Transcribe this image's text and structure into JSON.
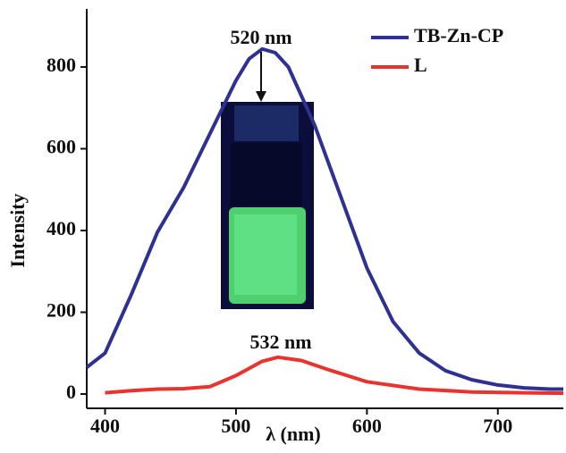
{
  "chart_data": {
    "type": "line",
    "xlabel": "λ (nm)",
    "ylabel": "Intensity",
    "xlim": [
      386,
      750
    ],
    "ylim": [
      -35,
      942
    ],
    "xticks": [
      400,
      500,
      600,
      700
    ],
    "yticks": [
      0,
      200,
      400,
      600,
      800
    ],
    "legend": "upper right",
    "annotations": [
      "520 nm",
      "532 nm"
    ],
    "series": [
      {
        "name": "TB-Zn-CP",
        "color": "#2e3192",
        "x": [
          386,
          400,
          420,
          440,
          460,
          480,
          500,
          510,
          520,
          530,
          540,
          560,
          580,
          600,
          620,
          640,
          660,
          680,
          700,
          720,
          740,
          750
        ],
        "values": [
          65,
          100,
          243,
          396,
          505,
          636,
          767,
          820,
          844,
          835,
          800,
          658,
          483,
          308,
          177,
          100,
          57,
          35,
          22,
          15,
          12,
          12
        ]
      },
      {
        "name": "L",
        "color": "#e8332e",
        "x": [
          400,
          420,
          440,
          460,
          480,
          500,
          520,
          532,
          550,
          570,
          600,
          640,
          680,
          720,
          750
        ],
        "values": [
          3,
          8,
          12,
          13,
          18,
          45,
          80,
          90,
          82,
          60,
          30,
          12,
          5,
          3,
          2
        ]
      }
    ]
  }
}
